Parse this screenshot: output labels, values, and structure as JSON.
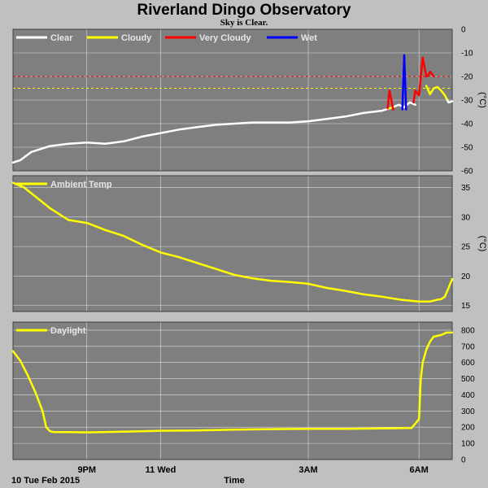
{
  "header": {
    "title": "Riverland Dingo Observatory",
    "subtitle": "Sky is Clear."
  },
  "footer": {
    "date_label": "10 Tue Feb 2015",
    "x_axis_title": "Time"
  },
  "x_axis": {
    "domain_hours": [
      19.0,
      30.9
    ],
    "ticks": [
      {
        "label": "9PM",
        "hour": 21
      },
      {
        "label": "11 Wed",
        "hour": 23
      },
      {
        "label": "3AM",
        "hour": 27
      },
      {
        "label": "6AM",
        "hour": 30
      }
    ],
    "gridline_hours": [
      21,
      23,
      27,
      30
    ]
  },
  "colors": {
    "panel_bg": "#7f7f7f",
    "page_bg": "#c0c0c0",
    "clear": "#ffffff",
    "cloudy": "#ffff00",
    "very_cloudy": "#ff0000",
    "wet": "#0000ff",
    "ambient": "#ffff00",
    "daylight": "#ffff00",
    "cloudy_threshold": "#ffff00",
    "very_cloudy_threshold": "#ff0000"
  },
  "chart_data": [
    {
      "type": "line",
      "panel": "sky-temperature",
      "ylabel": "(°C)",
      "ylim": [
        -60,
        0
      ],
      "yticks": [
        0,
        -10,
        -20,
        -30,
        -40,
        -50,
        -60
      ],
      "grid": true,
      "legend_position": "top-left",
      "legend": [
        "Clear",
        "Cloudy",
        "Very Cloudy",
        "Wet"
      ],
      "thresholds": [
        {
          "value": -20,
          "color_key": "very_cloudy_threshold"
        },
        {
          "value": -25,
          "color_key": "cloudy_threshold"
        }
      ],
      "series": [
        {
          "name": "Clear",
          "color_key": "clear",
          "segments": [
            {
              "x": [
                19.0,
                19.2,
                19.5,
                20.0,
                20.5,
                21.0,
                21.5,
                22.0,
                22.5,
                23.0,
                23.5,
                24.0,
                24.5,
                25.0,
                25.5,
                26.0,
                26.5,
                27.0,
                27.5,
                28.0,
                28.5,
                29.0,
                29.2
              ],
              "y": [
                -56.5,
                -55.5,
                -52,
                -49.5,
                -48.5,
                -48,
                -48.5,
                -47.5,
                -45.5,
                -44,
                -42.5,
                -41.5,
                -40.5,
                -40,
                -39.5,
                -39.5,
                -39.5,
                -39,
                -38,
                -37,
                -35.5,
                -34.5,
                -33.5
              ]
            },
            {
              "x": [
                29.3,
                29.45,
                29.6,
                29.75,
                29.9
              ],
              "y": [
                -33,
                -32,
                -33,
                -31,
                -32
              ]
            },
            {
              "x": [
                30.75,
                30.8,
                30.9
              ],
              "y": [
                -29.5,
                -31,
                -30.5
              ]
            }
          ]
        },
        {
          "name": "Cloudy",
          "color_key": "cloudy",
          "segments": [
            {
              "x": [
                29.2,
                29.3
              ],
              "y": [
                -33.5,
                -33
              ]
            },
            {
              "x": [
                30.2,
                30.3,
                30.4,
                30.5,
                30.6,
                30.7,
                30.75
              ],
              "y": [
                -24,
                -27.5,
                -25,
                -24.5,
                -26,
                -28,
                -29.5
              ]
            }
          ]
        },
        {
          "name": "Very Cloudy",
          "color_key": "very_cloudy",
          "segments": [
            {
              "x": [
                29.15,
                29.2,
                29.3
              ],
              "y": [
                -33.5,
                -26,
                -34
              ]
            },
            {
              "x": [
                29.85,
                29.9,
                29.95,
                30.0,
                30.1,
                30.2
              ],
              "y": [
                -31,
                -26,
                -27,
                -28,
                -12,
                -20
              ]
            },
            {
              "x": [
                30.2,
                30.25,
                30.3,
                30.4
              ],
              "y": [
                -20,
                -19.5,
                -18,
                -20
              ]
            }
          ]
        },
        {
          "name": "Wet",
          "color_key": "wet",
          "segments": [
            {
              "x": [
                29.55,
                29.6,
                29.65
              ],
              "y": [
                -34,
                -11,
                -34
              ]
            }
          ]
        }
      ]
    },
    {
      "type": "line",
      "panel": "ambient-temperature",
      "ylabel": "(°C)",
      "ylim": [
        14,
        37
      ],
      "yticks": [
        15,
        20,
        25,
        30,
        35
      ],
      "grid": true,
      "legend_position": "top-left",
      "legend": [
        "Ambient Temp"
      ],
      "series": [
        {
          "name": "Ambient Temp",
          "color_key": "ambient",
          "x": [
            19.0,
            19.3,
            19.6,
            20.0,
            20.5,
            20.7,
            21.0,
            21.5,
            22.0,
            22.5,
            23.0,
            23.5,
            24.0,
            24.5,
            25.0,
            25.5,
            26.0,
            26.5,
            27.0,
            27.5,
            28.0,
            28.5,
            29.0,
            29.5,
            29.8,
            30.0,
            30.3,
            30.5,
            30.6,
            30.7,
            30.8,
            30.9
          ],
          "y": [
            35.8,
            35,
            33.5,
            31.5,
            29.5,
            29.3,
            29,
            27.8,
            26.8,
            25.3,
            24,
            23.2,
            22.2,
            21.2,
            20.2,
            19.6,
            19.2,
            19,
            18.7,
            18,
            17.5,
            16.9,
            16.5,
            16,
            15.8,
            15.7,
            15.7,
            16,
            16.1,
            16.5,
            18,
            19.5
          ]
        }
      ]
    },
    {
      "type": "line",
      "panel": "daylight",
      "ylabel": "",
      "ylim": [
        0,
        850
      ],
      "yticks": [
        0,
        100,
        200,
        300,
        400,
        500,
        600,
        700,
        800
      ],
      "grid": true,
      "legend_position": "top-left",
      "legend": [
        "Daylight"
      ],
      "series": [
        {
          "name": "Daylight",
          "color_key": "daylight",
          "x": [
            19.0,
            19.2,
            19.4,
            19.6,
            19.8,
            19.9,
            20.0,
            20.1,
            20.5,
            21.0,
            22.0,
            23.0,
            24.0,
            25.0,
            26.0,
            27.0,
            28.0,
            29.0,
            29.8,
            30.0,
            30.05,
            30.1,
            30.2,
            30.3,
            30.4,
            30.6,
            30.7,
            30.75,
            30.9
          ],
          "y": [
            670,
            610,
            520,
            420,
            300,
            200,
            175,
            170,
            170,
            168,
            172,
            178,
            180,
            185,
            188,
            190,
            190,
            192,
            195,
            250,
            500,
            600,
            680,
            730,
            760,
            770,
            780,
            785,
            785
          ]
        }
      ]
    }
  ]
}
